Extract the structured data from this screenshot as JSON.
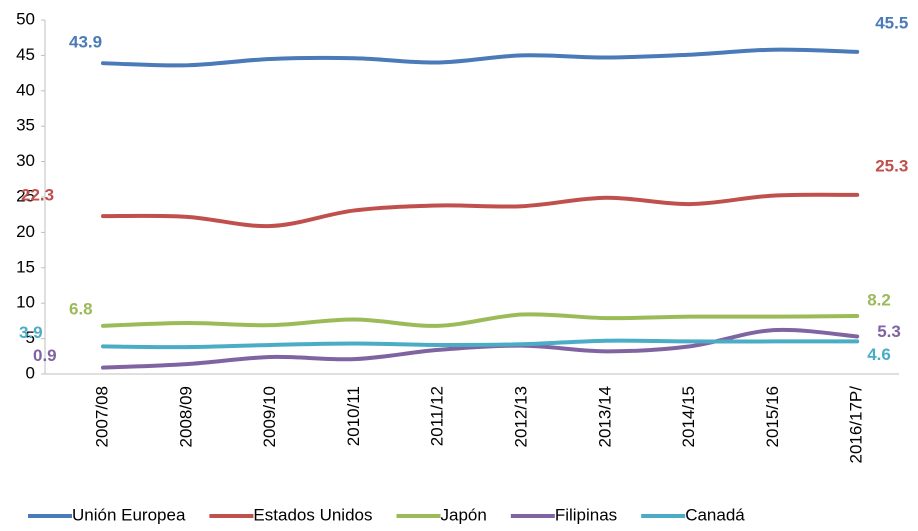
{
  "chart_data": {
    "type": "line",
    "categories": [
      "2007/08",
      "2008/09",
      "2009/10",
      "2010/11",
      "2011/12",
      "2012/13",
      "2013/14",
      "2014/15",
      "2015/16",
      "2016/17P/"
    ],
    "series": [
      {
        "name": "Unión Europea",
        "color": "#4a7ab8",
        "values": [
          43.9,
          43.6,
          44.5,
          44.6,
          44.0,
          45.0,
          44.7,
          45.1,
          45.8,
          45.5
        ]
      },
      {
        "name": "Estados Unidos",
        "color": "#c0504d",
        "values": [
          22.3,
          22.2,
          20.9,
          23.1,
          23.8,
          23.7,
          24.9,
          24.0,
          25.2,
          25.3
        ]
      },
      {
        "name": "Japón",
        "color": "#9bbb59",
        "values": [
          6.8,
          7.2,
          6.9,
          7.7,
          6.8,
          8.4,
          7.9,
          8.1,
          8.1,
          8.2
        ]
      },
      {
        "name": "Filipinas",
        "color": "#8064a2",
        "values": [
          0.9,
          1.4,
          2.4,
          2.1,
          3.4,
          4.0,
          3.2,
          3.9,
          6.2,
          5.3
        ]
      },
      {
        "name": "Canadá",
        "color": "#4bacc6",
        "values": [
          3.9,
          3.8,
          4.1,
          4.3,
          4.1,
          4.2,
          4.7,
          4.6,
          4.6,
          4.6
        ]
      }
    ],
    "ylim": [
      0,
      50
    ],
    "yticks": [
      0,
      5,
      10,
      15,
      20,
      25,
      30,
      35,
      40,
      45,
      50
    ],
    "legend": "bottom"
  }
}
